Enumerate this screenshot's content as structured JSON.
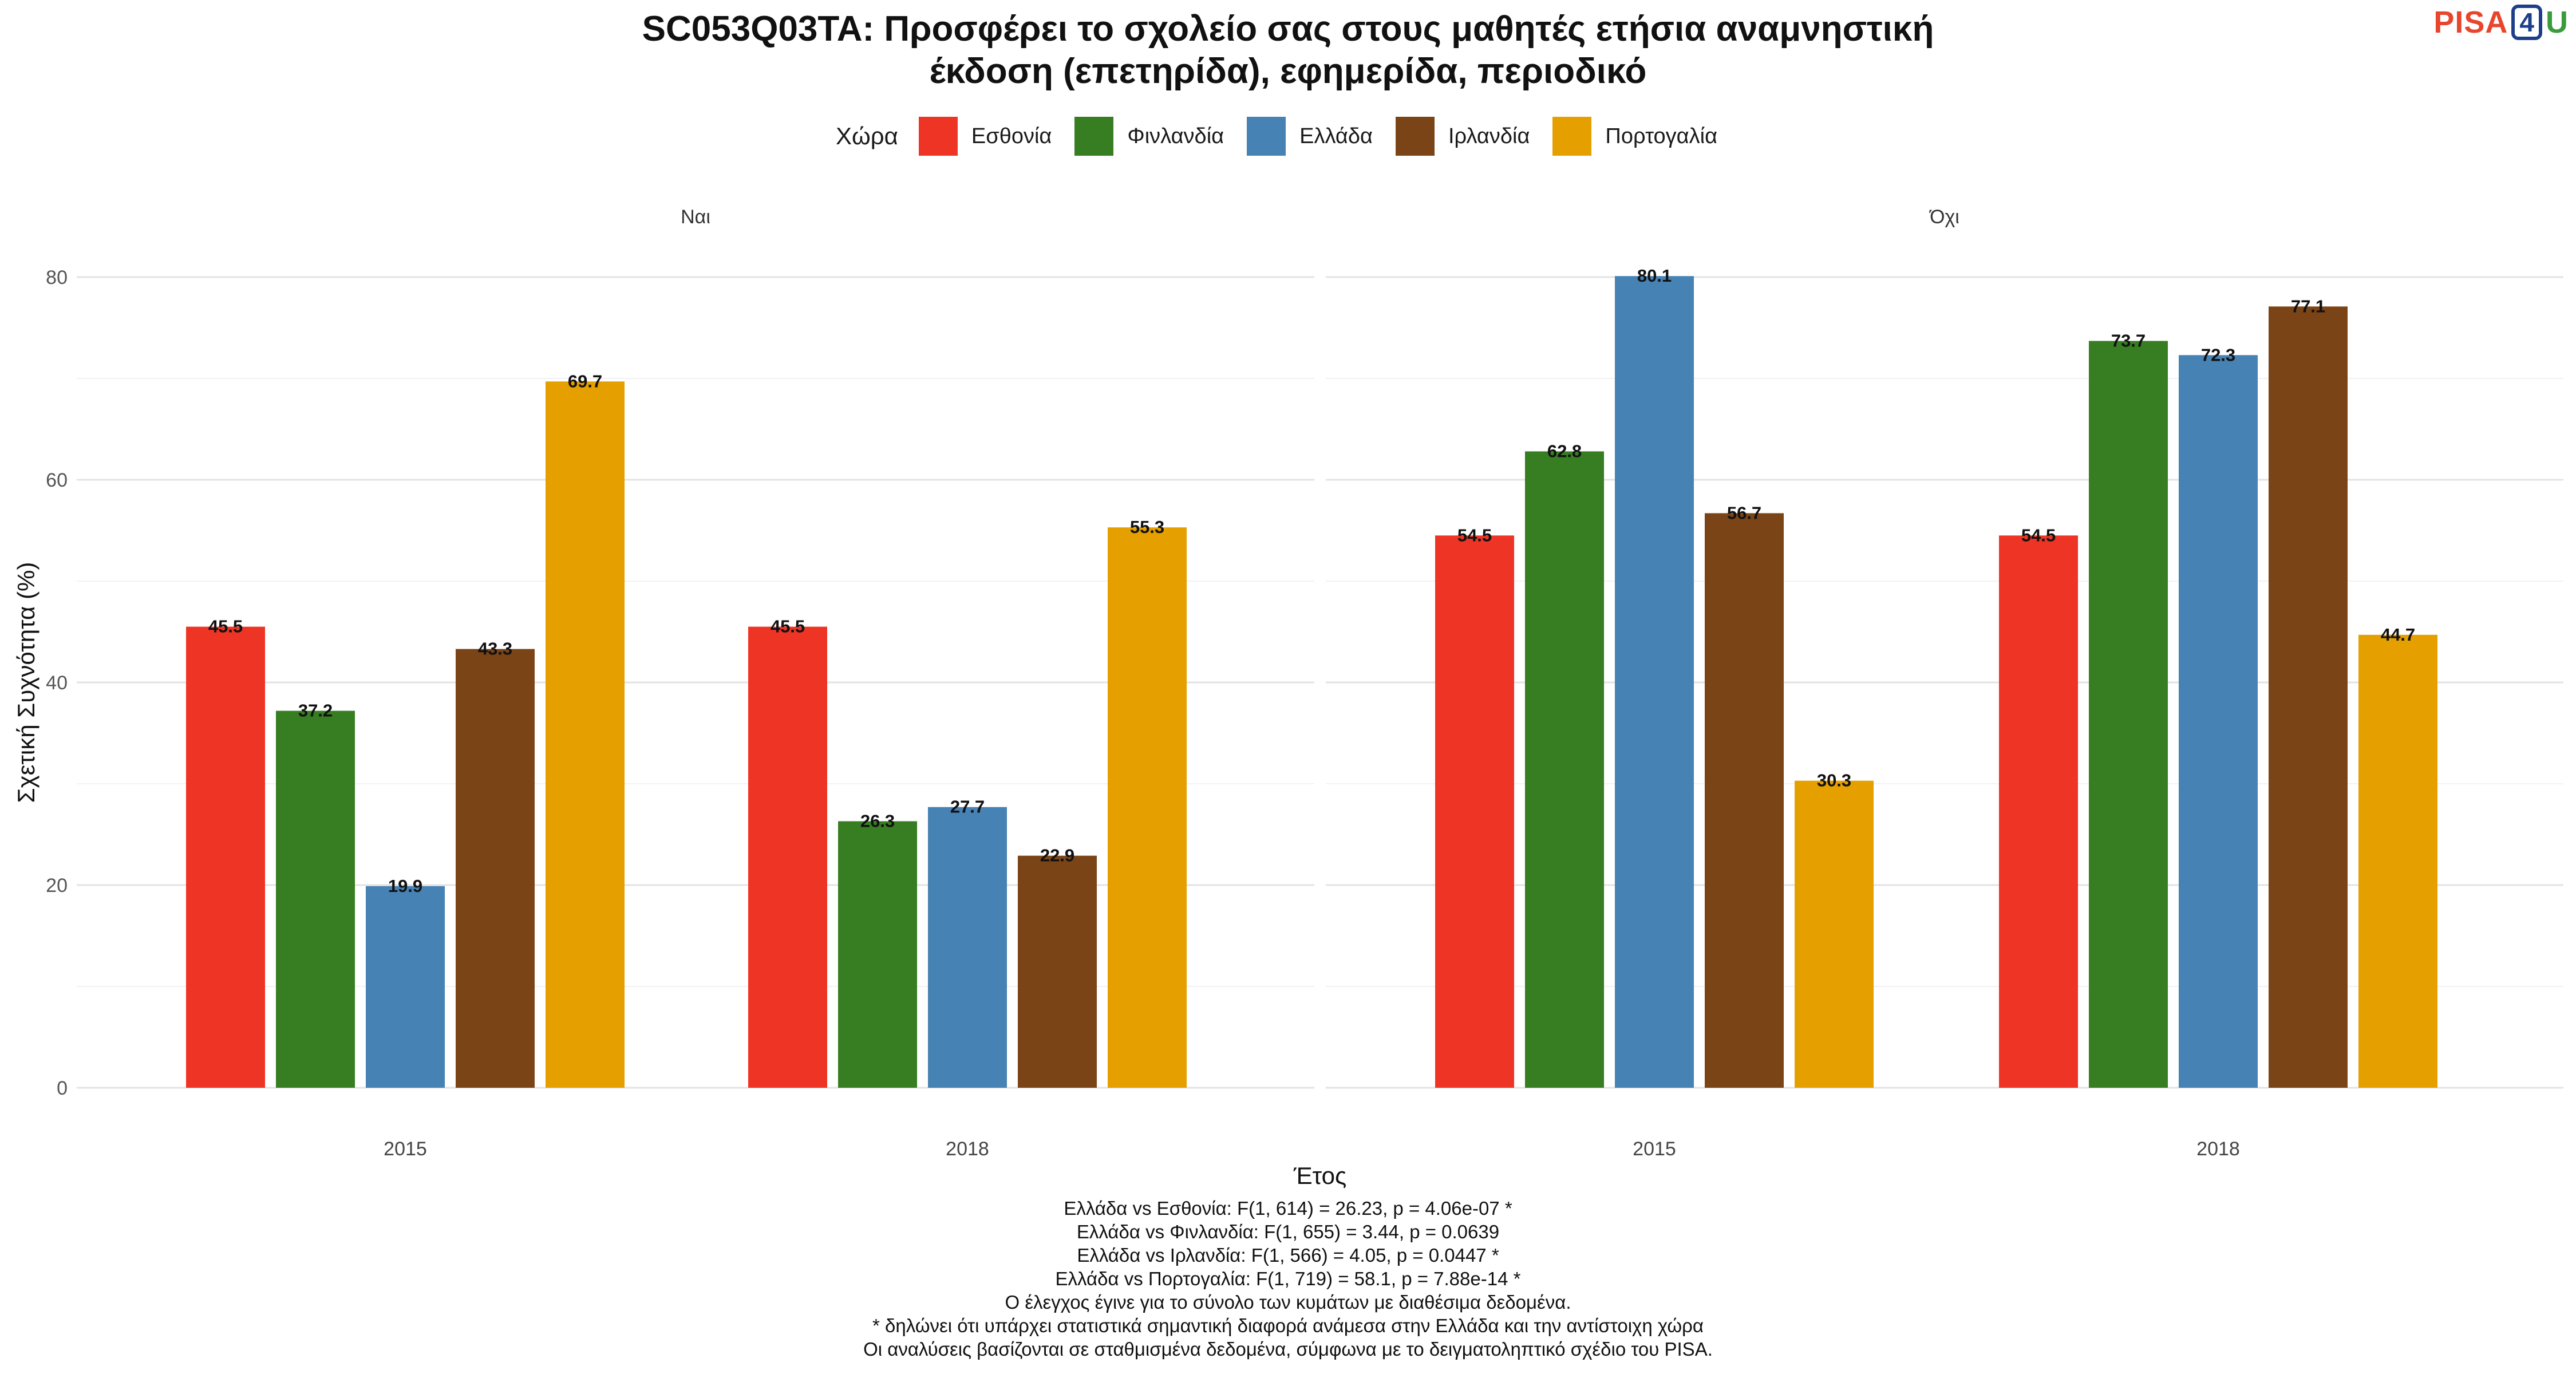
{
  "title_line1": "SC053Q03TA: Προσφέρει το σχολείο σας στους μαθητές ετήσια αναμνηστική",
  "title_line2": "έκδοση (επετηρίδα), εφημερίδα, περιοδικό",
  "logo": {
    "text": "PISA",
    "number": "4",
    "letter": "U"
  },
  "legend": {
    "title": "Χώρα",
    "items": [
      {
        "label": "Εσθονία",
        "color": "#ee3424"
      },
      {
        "label": "Φινλανδία",
        "color": "#377d22"
      },
      {
        "label": "Ελλάδα",
        "color": "#4682b4"
      },
      {
        "label": "Ιρλανδία",
        "color": "#7a4417"
      },
      {
        "label": "Πορτογαλία",
        "color": "#e5a000"
      }
    ]
  },
  "chart_data": {
    "type": "bar",
    "xlabel": "Έτος",
    "ylabel": "Σχετική Συχνότητα (%)",
    "ylim": [
      0,
      80
    ],
    "yticks": [
      "0",
      "20",
      "40",
      "60",
      "80"
    ],
    "grid": true,
    "legend_position": "top",
    "series_names": [
      "Εσθονία",
      "Φινλανδία",
      "Ελλάδα",
      "Ιρλανδία",
      "Πορτογαλία"
    ],
    "panels": [
      {
        "label": "Ναι",
        "groups": [
          {
            "category": "2015",
            "values": [
              45.5,
              37.2,
              19.9,
              43.3,
              69.7
            ]
          },
          {
            "category": "2018",
            "values": [
              45.5,
              26.3,
              27.7,
              22.9,
              55.3
            ]
          }
        ]
      },
      {
        "label": "Όχι",
        "groups": [
          {
            "category": "2015",
            "values": [
              54.5,
              62.8,
              80.1,
              56.7,
              30.3
            ]
          },
          {
            "category": "2018",
            "values": [
              54.5,
              73.7,
              72.3,
              77.1,
              44.7
            ]
          }
        ]
      }
    ]
  },
  "notes": [
    "Ελλάδα vs Εσθονία: F(1, 614) = 26.23, p = 4.06e-07 *",
    "Ελλάδα vs Φινλανδία: F(1, 655) = 3.44, p = 0.0639",
    "Ελλάδα vs Ιρλανδία: F(1, 566) = 4.05, p = 0.0447 *",
    "Ελλάδα vs Πορτογαλία: F(1, 719) = 58.1, p = 7.88e-14 *",
    "Ο έλεγχος έγινε για το σύνολο των κυμάτων με διαθέσιμα δεδομένα.",
    "* δηλώνει ότι υπάρχει στατιστικά σημαντική διαφορά ανάμεσα στην Ελλάδα και την αντίστοιχη χώρα",
    "Οι αναλύσεις βασίζονται σε σταθμισμένα δεδομένα, σύμφωνα με το δειγματοληπτικό σχέδιο του PISA."
  ]
}
